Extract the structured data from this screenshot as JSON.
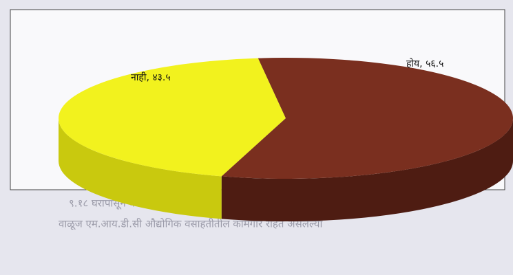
{
  "page_text": [
    "९.१८ घरापासून कंपनीचे अंतर व कंपनीत जाण्याची सुविधा",
    "वाळूज एम.आय.डी.सी औद्योगिक वसाहतीतील कामगार राहत असलेल्या"
  ],
  "chart_data": {
    "type": "pie3d",
    "values": [
      43.5,
      56.5
    ],
    "value_labels": [
      "नाही, ४३.५",
      "होय, ५६.५"
    ],
    "colors": [
      "#f2f21e",
      "#7a2f1f"
    ],
    "side_colors": [
      "#c9c90e",
      "#4e1c12"
    ]
  }
}
